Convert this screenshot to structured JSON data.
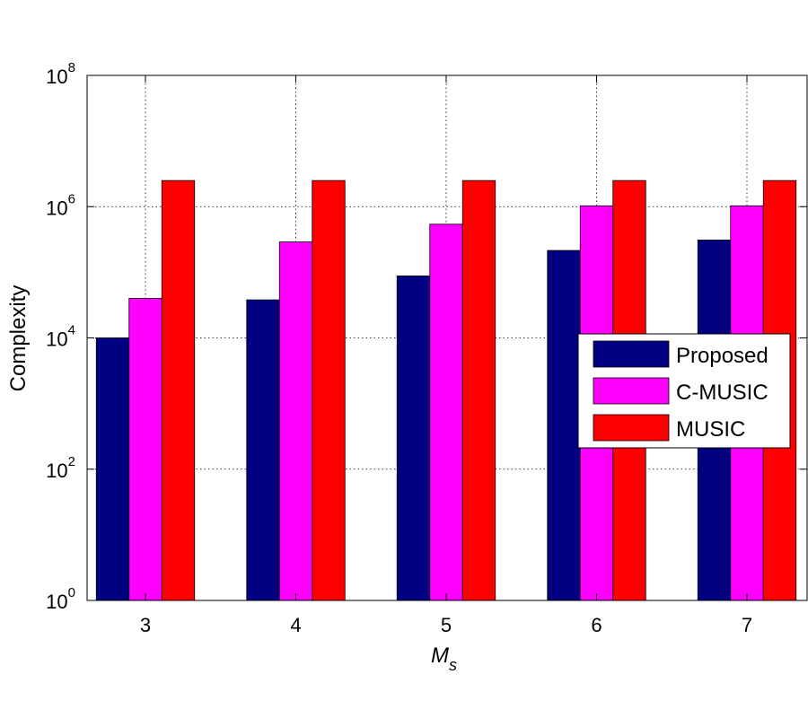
{
  "chart_data": {
    "type": "bar",
    "title": "",
    "xlabel": "M",
    "xlabel_subscript": "s",
    "ylabel": "Complexity",
    "y_scale": "log",
    "ylim": [
      1,
      100000000
    ],
    "y_ticks": [
      {
        "base": "10",
        "exp": "0",
        "value": 1
      },
      {
        "base": "10",
        "exp": "2",
        "value": 100
      },
      {
        "base": "10",
        "exp": "4",
        "value": 10000
      },
      {
        "base": "10",
        "exp": "6",
        "value": 1000000
      },
      {
        "base": "10",
        "exp": "8",
        "value": 100000000
      }
    ],
    "categories": [
      "3",
      "4",
      "5",
      "6",
      "7"
    ],
    "grid": true,
    "legend_position": "right",
    "series": [
      {
        "name": "Proposed",
        "color": "#000080",
        "values": [
          10000,
          38000,
          88000,
          215000,
          310000
        ]
      },
      {
        "name": "C-MUSIC",
        "color": "#ff00ff",
        "values": [
          40000,
          290000,
          540000,
          1030000,
          1030000
        ]
      },
      {
        "name": "MUSIC",
        "color": "#ff0000",
        "values": [
          2500000,
          2500000,
          2500000,
          2500000,
          2500000
        ]
      }
    ]
  }
}
